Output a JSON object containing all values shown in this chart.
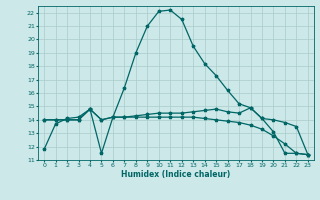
{
  "xlabel": "Humidex (Indice chaleur)",
  "bg_color": "#cde8e8",
  "grid_color": "#aacccc",
  "line_color": "#006666",
  "xlim": [
    -0.5,
    23.5
  ],
  "ylim": [
    11,
    22.5
  ],
  "xticks": [
    0,
    1,
    2,
    3,
    4,
    5,
    6,
    7,
    8,
    9,
    10,
    11,
    12,
    13,
    14,
    15,
    16,
    17,
    18,
    19,
    20,
    21,
    22,
    23
  ],
  "yticks": [
    11,
    12,
    13,
    14,
    15,
    16,
    17,
    18,
    19,
    20,
    21,
    22
  ],
  "curve1_x": [
    0,
    1,
    2,
    3,
    4,
    5,
    6,
    7,
    8,
    9,
    10,
    11,
    12,
    13,
    14,
    15,
    16,
    17,
    18,
    19,
    20,
    21,
    22,
    23
  ],
  "curve1_y": [
    11.8,
    13.7,
    14.1,
    14.2,
    14.8,
    11.5,
    14.2,
    16.4,
    19.0,
    21.0,
    22.1,
    22.2,
    21.5,
    19.5,
    18.2,
    17.3,
    16.2,
    15.2,
    14.9,
    14.1,
    13.1,
    11.5,
    11.5,
    11.4
  ],
  "curve2_x": [
    0,
    1,
    2,
    3,
    4,
    5,
    6,
    7,
    8,
    9,
    10,
    11,
    12,
    13,
    14,
    15,
    16,
    17,
    18,
    19,
    20,
    21,
    22,
    23
  ],
  "curve2_y": [
    14.0,
    14.0,
    14.0,
    14.0,
    14.8,
    14.0,
    14.2,
    14.2,
    14.3,
    14.4,
    14.5,
    14.5,
    14.5,
    14.6,
    14.7,
    14.8,
    14.6,
    14.5,
    14.9,
    14.1,
    14.0,
    13.8,
    13.5,
    11.4
  ],
  "curve3_x": [
    0,
    1,
    2,
    3,
    4,
    5,
    6,
    7,
    8,
    9,
    10,
    11,
    12,
    13,
    14,
    15,
    16,
    17,
    18,
    19,
    20,
    21,
    22,
    23
  ],
  "curve3_y": [
    14.0,
    14.0,
    14.0,
    14.0,
    14.8,
    14.0,
    14.2,
    14.2,
    14.2,
    14.2,
    14.2,
    14.2,
    14.2,
    14.2,
    14.1,
    14.0,
    13.9,
    13.8,
    13.6,
    13.3,
    12.8,
    12.2,
    11.5,
    11.4
  ]
}
